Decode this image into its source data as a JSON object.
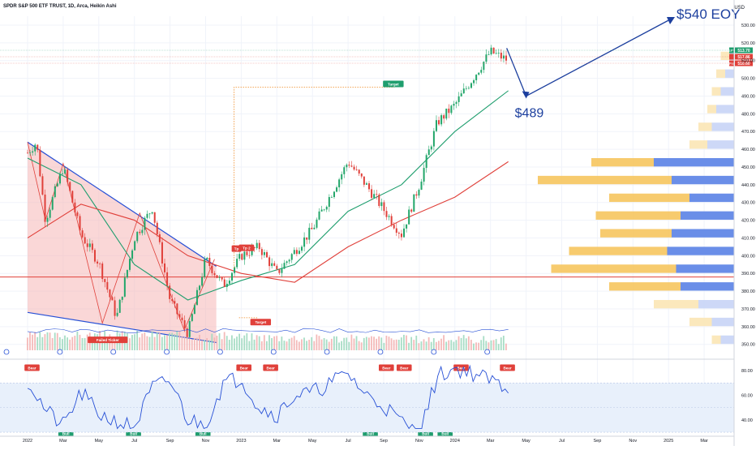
{
  "header": {
    "symbol_line": "SPDR S&P 500 ETF TRUST, 1D, Arca, Heikin Ashi",
    "currency": "USD"
  },
  "chart_data": [
    {
      "type": "line",
      "chart_kind": "candlestick (heikin ashi)",
      "title": "SPDR S&P 500 ETF TRUST, 1D, Arca, Heikin Ashi",
      "ylabel": "USD",
      "ylim": [
        343,
        535
      ],
      "y_ticks": [
        350,
        360,
        370,
        380,
        390,
        400,
        410,
        420,
        430,
        440,
        450,
        460,
        470,
        480,
        490,
        500,
        510,
        520,
        530
      ],
      "x_ticks": [
        "2022",
        "Mar",
        "May",
        "Jul",
        "Sep",
        "Nov",
        "2023",
        "Mar",
        "May",
        "Jul",
        "Sep",
        "Nov",
        "2024",
        "Mar",
        "May",
        "Jul",
        "Sep",
        "Nov",
        "2025",
        "Mar"
      ],
      "grid": true,
      "price_series": {
        "name": "SPY",
        "x": [
          "2022-01",
          "2022-01",
          "2022-02",
          "2022-03",
          "2022-04",
          "2022-05",
          "2022-06",
          "2022-07",
          "2022-08",
          "2022-09",
          "2022-10",
          "2022-11",
          "2022-12",
          "2023-01",
          "2023-02",
          "2023-03",
          "2023-05",
          "2023-07",
          "2023-08",
          "2023-10",
          "2023-11",
          "2023-12",
          "2024-01",
          "2024-02",
          "2024-03",
          "2024-04"
        ],
        "values": [
          458,
          464,
          420,
          450,
          412,
          396,
          365,
          410,
          427,
          375,
          356,
          398,
          383,
          400,
          405,
          390,
          415,
          453,
          440,
          412,
          440,
          475,
          485,
          500,
          515,
          510
        ]
      },
      "moving_averages": [
        {
          "name": "",
          "color": "#1f9e6e",
          "x": [
            "2022-01",
            "2022-04",
            "2022-07",
            "2022-10",
            "2023-01",
            "2023-04",
            "2023-07",
            "2023-10",
            "2024-01",
            "2024-04"
          ],
          "values": [
            455,
            440,
            395,
            375,
            386,
            395,
            425,
            440,
            470,
            493
          ]
        },
        {
          "name": "",
          "color": "#e0403a",
          "x": [
            "2022-01",
            "2022-04",
            "2022-07",
            "2022-10",
            "2023-01",
            "2023-04",
            "2023-07",
            "2023-10",
            "2024-01",
            "2024-04"
          ],
          "values": [
            410,
            429,
            420,
            400,
            390,
            385,
            405,
            420,
            433,
            453
          ]
        }
      ],
      "horizontal_line": {
        "value": 388,
        "color": "#e0403a"
      },
      "price_labels": [
        {
          "text": "SPY",
          "value": "513.70",
          "color": "#1f9e6e"
        },
        {
          "text": "",
          "value": "517.86",
          "color": "#e0403a"
        },
        {
          "text": "Pre",
          "value": "510.60",
          "color": "#e0403a"
        }
      ],
      "annotations": [
        {
          "text": "$540 EOY",
          "color": "#1c3f9e"
        },
        {
          "text": "$489",
          "color": "#1c3f9e"
        },
        {
          "text": "Target"
        },
        {
          "text": "Target"
        },
        {
          "text": "Tp"
        },
        {
          "text": "Tp 2"
        },
        {
          "text": "Failed Ticker"
        }
      ],
      "volume_profile": {
        "levels": [
          350,
          360,
          370,
          380,
          390,
          400,
          410,
          420,
          430,
          440,
          450,
          460,
          470,
          480,
          490,
          500,
          510
        ],
        "up_volume": [
          2,
          5,
          10,
          16,
          28,
          22,
          16,
          19,
          18,
          30,
          14,
          4,
          3,
          2,
          2,
          2,
          2
        ],
        "down_volume": [
          3,
          5,
          8,
          12,
          13,
          15,
          14,
          12,
          10,
          14,
          18,
          6,
          5,
          4,
          3,
          2,
          1
        ]
      },
      "volume_series": {
        "x": [
          "2022-01",
          "2022-07",
          "2023-01",
          "2023-07",
          "2024-01",
          "2024-04"
        ],
        "values": [
          80,
          95,
          75,
          60,
          55,
          50
        ]
      }
    },
    {
      "type": "line",
      "title": "",
      "ylim": [
        32,
        86
      ],
      "y_ticks": [
        40,
        60,
        80
      ],
      "band": [
        30,
        70
      ],
      "midline": 50,
      "series": [
        {
          "name": "",
          "color": "#2750d6",
          "x": [
            "2022-01",
            "2022-02",
            "2022-03",
            "2022-04",
            "2022-05",
            "2022-06",
            "2022-07",
            "2022-08",
            "2022-09",
            "2022-10",
            "2022-11",
            "2022-12",
            "2023-01",
            "2023-02",
            "2023-03",
            "2023-04",
            "2023-05",
            "2023-06",
            "2023-07",
            "2023-08",
            "2023-09",
            "2023-10",
            "2023-11",
            "2023-12",
            "2024-01",
            "2024-02",
            "2024-03",
            "2024-04"
          ],
          "values": [
            72,
            48,
            35,
            62,
            45,
            38,
            34,
            66,
            72,
            40,
            36,
            70,
            74,
            50,
            44,
            60,
            62,
            70,
            78,
            60,
            52,
            38,
            28,
            75,
            82,
            78,
            72,
            66
          ]
        }
      ],
      "labels": [
        "Bear",
        "Bear",
        "Bear",
        "Bear",
        "Bear",
        "Bear",
        "Bear",
        "Bull",
        "Bull",
        "Bull",
        "Bull",
        "Bull",
        "Bull"
      ]
    }
  ]
}
